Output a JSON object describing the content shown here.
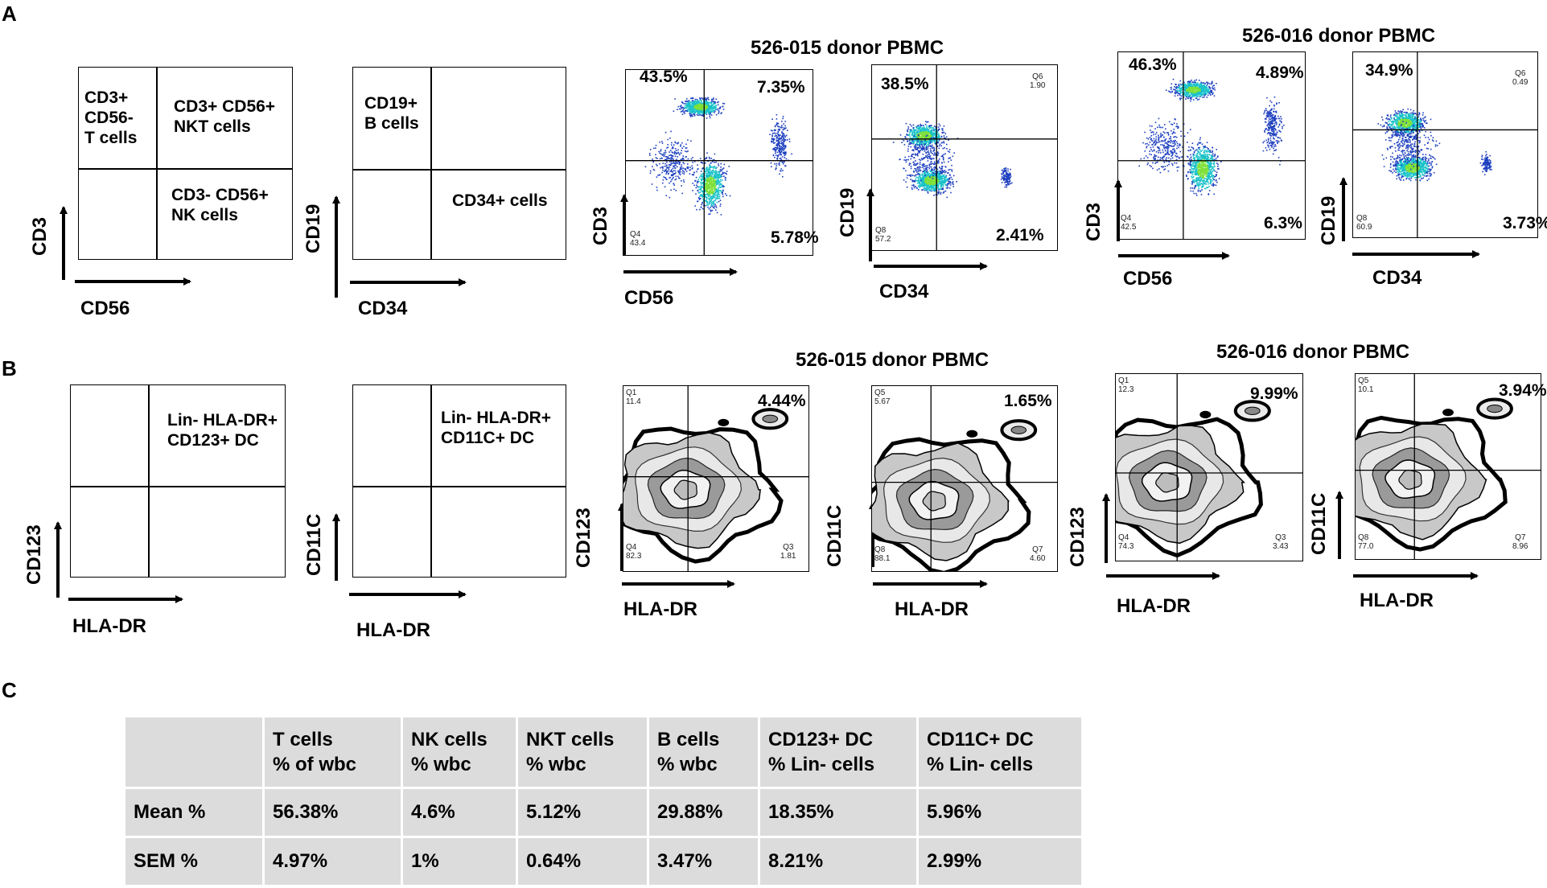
{
  "panels": {
    "a": "A",
    "b": "B",
    "c": "C"
  },
  "panel_a": {
    "schematic_1": {
      "q_top_left": "CD3+\nCD56-\nT cells",
      "q_top_right": "CD3+ CD56+\nNKT cells",
      "q_bottom_right": "CD3- CD56+\nNK cells",
      "x_label": "CD56",
      "y_label": "CD3"
    },
    "schematic_2": {
      "q_top_left": "CD19+\nB cells",
      "q_bottom_right": "CD34+ cells",
      "x_label": "CD34",
      "y_label": "CD19"
    },
    "group_015_title": "526-015 donor PBMC",
    "group_016_title": "526-016 donor PBMC",
    "plots": [
      {
        "x_label": "CD56",
        "y_label": "CD3",
        "top_left_pct": "43.5%",
        "top_right_pct": "7.35%",
        "bottom_right_pct": "5.78%",
        "q_small_bl": "Q4\n43.4"
      },
      {
        "x_label": "CD34",
        "y_label": "CD19",
        "top_left_pct": "38.5%",
        "q_small_tr": "Q6\n1.90",
        "bottom_right_pct": "2.41%",
        "q_small_bl": "Q8\n57.2"
      },
      {
        "x_label": "CD56",
        "y_label": "CD3",
        "top_left_pct": "46.3%",
        "top_right_pct": "4.89%",
        "bottom_right_pct": "6.3%",
        "q_small_bl": "Q4\n42.5"
      },
      {
        "x_label": "CD34",
        "y_label": "CD19",
        "top_left_pct": "34.9%",
        "q_small_tr": "Q6\n0.49",
        "bottom_right_pct": "3.73%",
        "q_small_bl": "Q8\n60.9"
      }
    ]
  },
  "panel_b": {
    "schematic_1": {
      "q_top_right": "Lin- HLA-DR+\nCD123+ DC",
      "x_label": "HLA-DR",
      "y_label": "CD123"
    },
    "schematic_2": {
      "q_top_right": "Lin- HLA-DR+\nCD11C+ DC",
      "x_label": "HLA-DR",
      "y_label": "CD11C"
    },
    "group_015_title": "526-015 donor PBMC",
    "group_016_title": "526-016 donor PBMC",
    "plots": [
      {
        "x_label": "HLA-DR",
        "y_label": "CD123",
        "q_tl": "Q1\n11.4",
        "top_right_pct": "4.44%",
        "q_bl": "Q4\n82.3",
        "q_br": "Q3\n1.81"
      },
      {
        "x_label": "HLA-DR",
        "y_label": "CD11C",
        "q_tl": "Q5\n5.67",
        "top_right_pct": "1.65%",
        "q_bl": "Q8\n88.1",
        "q_br": "Q7\n4.60"
      },
      {
        "x_label": "HLA-DR",
        "y_label": "CD123",
        "q_tl": "Q1\n12.3",
        "top_right_pct": "9.99%",
        "q_bl": "Q4\n74.3",
        "q_br": "Q3\n3.43"
      },
      {
        "x_label": "HLA-DR",
        "y_label": "CD11C",
        "q_tl": "Q5\n10.1",
        "top_right_pct": "3.94%",
        "q_bl": "Q8\n77.0",
        "q_br": "Q7\n8.96"
      }
    ]
  },
  "table": {
    "headers": [
      [
        "",
        ""
      ],
      [
        "T cells",
        "% of  wbc"
      ],
      [
        "NK cells",
        "% wbc"
      ],
      [
        "NKT cells",
        "% wbc"
      ],
      [
        "B cells",
        "% wbc"
      ],
      [
        "CD123+ DC",
        "% Lin- cells"
      ],
      [
        "CD11C+ DC",
        "% Lin- cells"
      ]
    ],
    "rows": [
      [
        "Mean %",
        "56.38%",
        "4.6%",
        "5.12%",
        "29.88%",
        "18.35%",
        "5.96%"
      ],
      [
        "SEM %",
        "4.97%",
        "1%",
        "0.64%",
        "3.47%",
        "8.21%",
        "2.99%"
      ]
    ]
  },
  "colors": {
    "scatter_low": "#1d3fbf",
    "scatter_mid": "#19c2c9",
    "scatter_high": "#7fe03a",
    "table_cell": "#dcdcdc"
  }
}
